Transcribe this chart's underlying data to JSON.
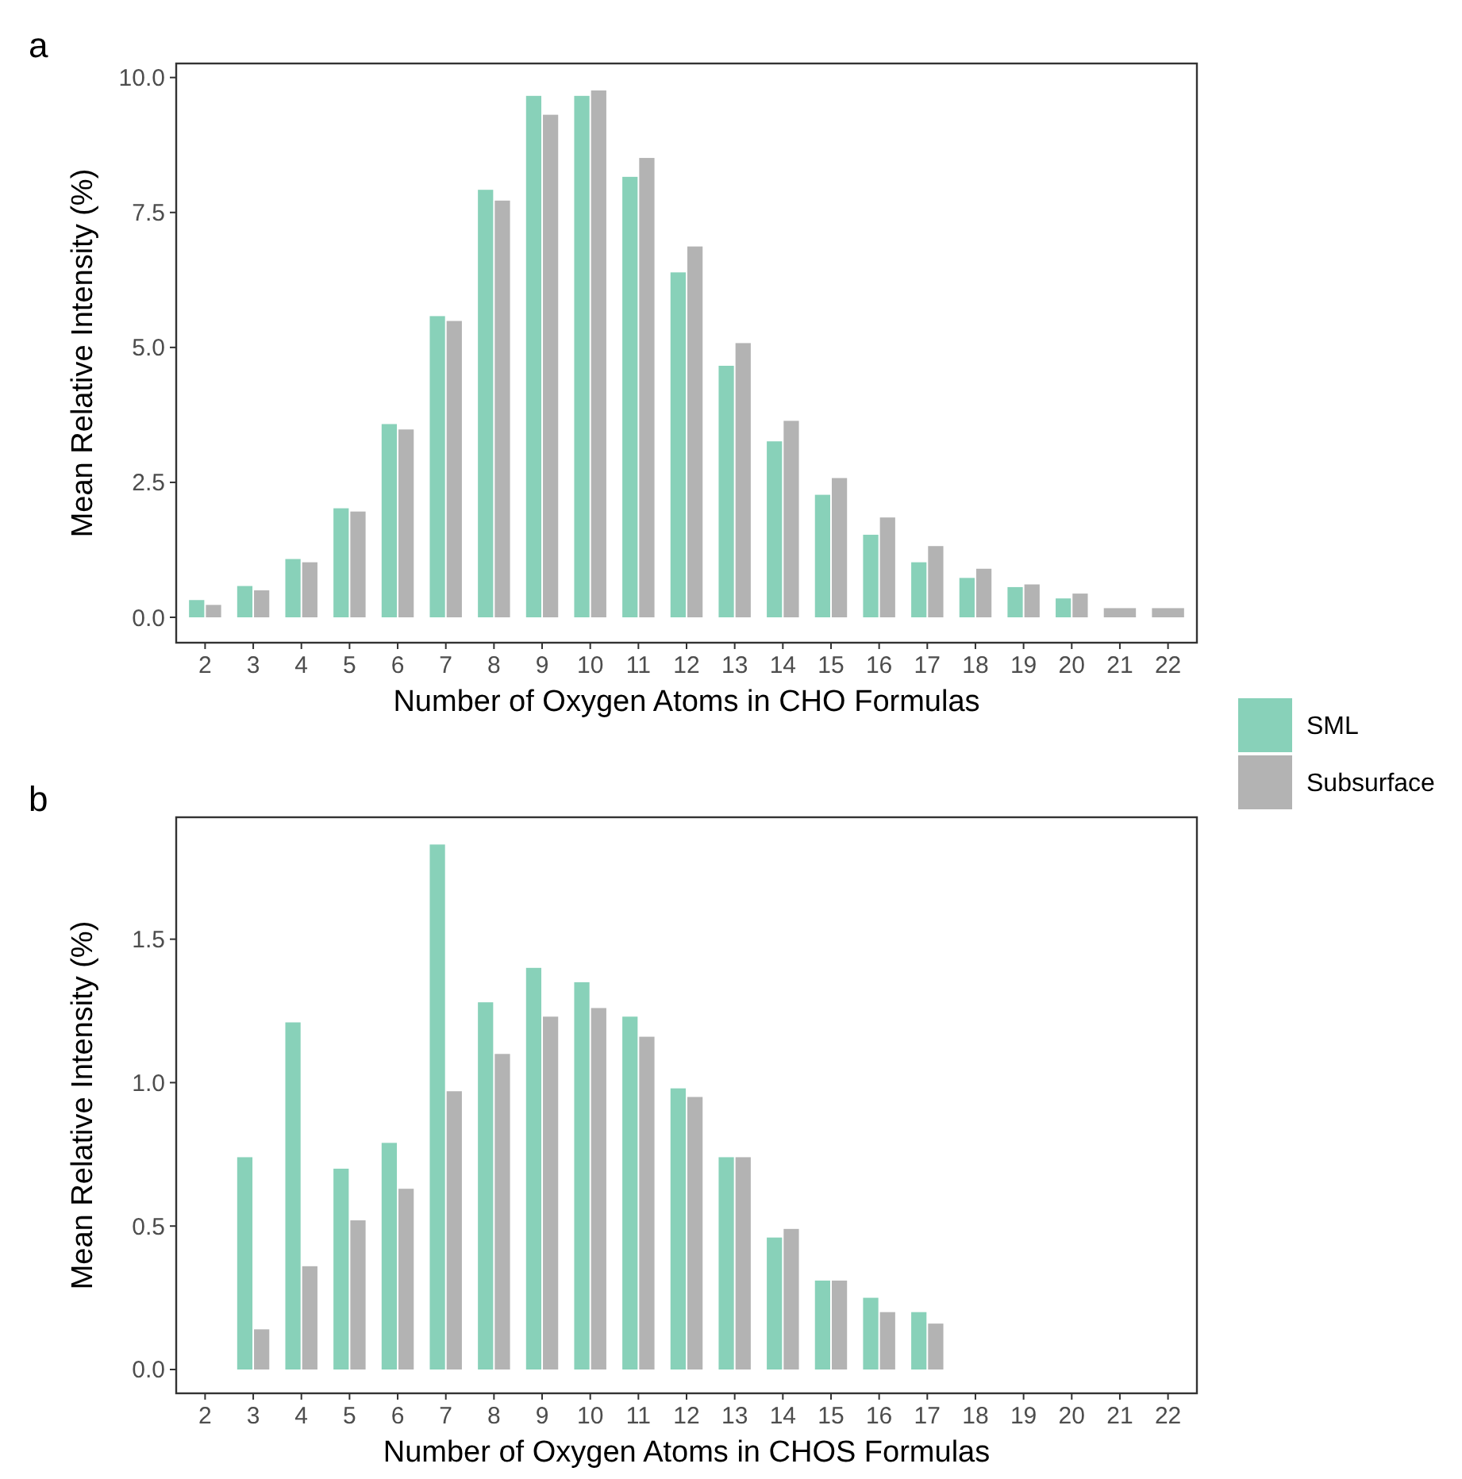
{
  "chart_data": [
    {
      "type": "bar",
      "title": "a",
      "xlabel": "Number of Oxygen Atoms in CHO Formulas",
      "ylabel": "Mean Relative Intensity (%)",
      "categories": [
        "2",
        "3",
        "4",
        "5",
        "6",
        "7",
        "8",
        "9",
        "10",
        "11",
        "12",
        "13",
        "14",
        "15",
        "16",
        "17",
        "18",
        "19",
        "20",
        "21",
        "22"
      ],
      "series": [
        {
          "name": "SML",
          "color": "#88d1b9",
          "values": [
            0.32,
            0.58,
            1.08,
            2.02,
            3.58,
            5.58,
            7.92,
            9.66,
            9.66,
            8.16,
            6.39,
            4.66,
            3.26,
            2.27,
            1.53,
            1.02,
            0.73,
            0.56,
            0.35,
            null,
            null
          ]
        },
        {
          "name": "Subsurface",
          "color": "#b3b3b3",
          "values": [
            0.23,
            0.5,
            1.02,
            1.96,
            3.48,
            5.49,
            7.72,
            9.31,
            9.76,
            8.51,
            6.87,
            5.08,
            3.64,
            2.58,
            1.85,
            1.32,
            0.9,
            0.61,
            0.44,
            0.17,
            0.17
          ]
        }
      ],
      "ylim": [
        -0.47,
        10.26
      ],
      "yticks": [
        {
          "value": 0,
          "label": "0.0"
        },
        2.5,
        {
          "value": 5,
          "label": "5.0"
        },
        7.5,
        {
          "value": 10,
          "label": "10.0"
        }
      ],
      "grid": false,
      "legend": "right"
    },
    {
      "type": "bar",
      "title": "b",
      "xlabel": "Number of Oxygen Atoms in CHOS Formulas",
      "ylabel": "Mean Relative Intensity (%)",
      "categories": [
        "2",
        "3",
        "4",
        "5",
        "6",
        "7",
        "8",
        "9",
        "10",
        "11",
        "12",
        "13",
        "14",
        "15",
        "16",
        "17",
        "18",
        "19",
        "20",
        "21",
        "22"
      ],
      "series": [
        {
          "color": "#88d1b9",
          "values": [
            null,
            0.74,
            1.21,
            0.7,
            0.79,
            1.83,
            1.28,
            1.4,
            1.35,
            1.23,
            0.98,
            0.74,
            0.46,
            0.31,
            0.25,
            0.2,
            null,
            null,
            null,
            null,
            null
          ]
        },
        {
          "color": "#b3b3b3",
          "values": [
            null,
            0.14,
            0.36,
            0.52,
            0.63,
            0.97,
            1.1,
            1.23,
            1.26,
            1.16,
            0.95,
            0.74,
            0.49,
            0.31,
            0.2,
            0.16,
            null,
            null,
            null,
            null,
            null
          ]
        }
      ],
      "ylim": [
        -0.083,
        1.925
      ],
      "yticks": [
        {
          "value": 0,
          "label": "0.0"
        },
        0.5,
        {
          "value": 1,
          "label": "1.0"
        },
        1.5
      ],
      "grid": false
    }
  ]
}
